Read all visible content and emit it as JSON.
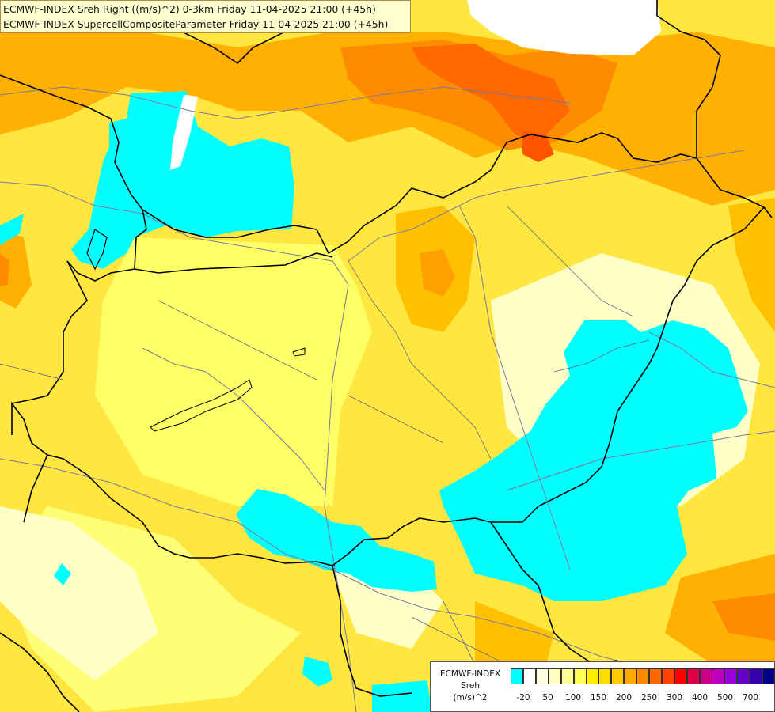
{
  "title": {
    "line1": "ECMWF-INDEX Sreh Right ((m/s)^2) 0-3km Friday 11-04-2025 21:00 (+45h)",
    "line2": "ECMWF-INDEX SupercellCompositeParameter Friday 11-04-2025 21:00 (+45h)"
  },
  "legend": {
    "line1": "ECMWF-INDEX",
    "line2": "Sreh",
    "line3": "(m/s)^2",
    "ticks": [
      "-20",
      "50",
      "100",
      "150",
      "200",
      "250",
      "300",
      "400",
      "500",
      "700"
    ],
    "colors": [
      "#00ffff",
      "#ffffff",
      "#ffffe0",
      "#ffffc0",
      "#ffff99",
      "#ffff55",
      "#ffee00",
      "#ffdd00",
      "#ffcc00",
      "#ffaa00",
      "#ff8800",
      "#ff6600",
      "#ff4400",
      "#ff0000",
      "#dd0044",
      "#cc0088",
      "#bb00bb",
      "#9900dd",
      "#6600cc",
      "#3300aa",
      "#000088"
    ]
  },
  "colors": {
    "cyan": "#00ffff",
    "white": "#ffffff",
    "pale": "#ffffc8",
    "lightyellow": "#ffff88",
    "yellow": "#ffee33",
    "gold": "#ffd820",
    "orange": "#ffb000",
    "darkorange": "#ff8c00",
    "red-orange": "#ff6a00",
    "border": "#000000",
    "river": "#7a7a9a"
  }
}
